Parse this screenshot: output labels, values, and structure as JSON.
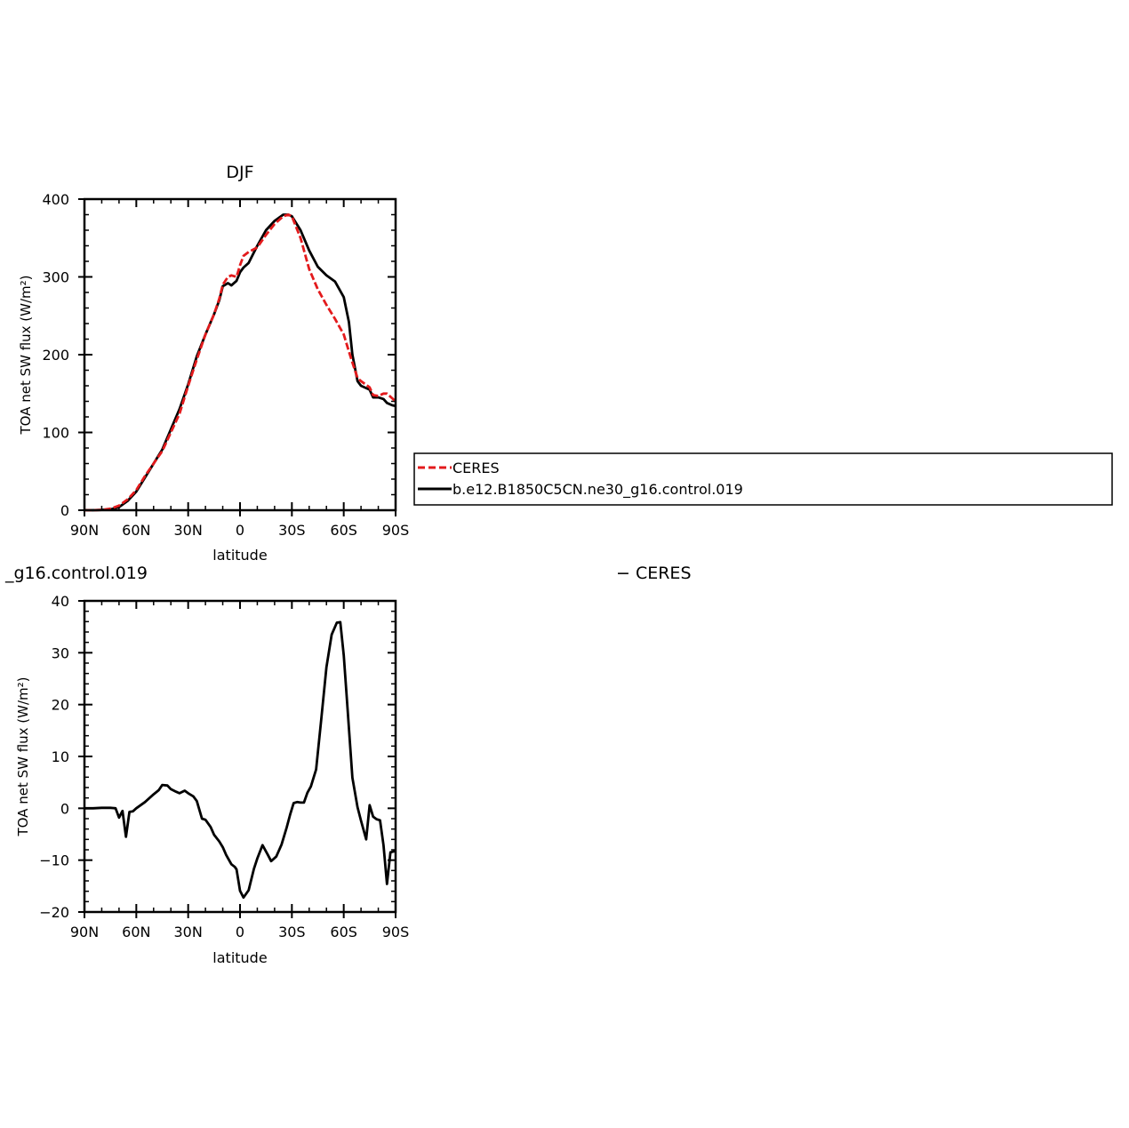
{
  "chart_data": [
    {
      "type": "line",
      "title": "DJF",
      "xlabel": "latitude",
      "ylabel": "TOA net SW flux (W/m²)",
      "xlim": [
        90,
        -90
      ],
      "ylim": [
        0,
        400
      ],
      "xticks": [
        90,
        60,
        30,
        0,
        -30,
        -60,
        -90
      ],
      "xtick_labels": [
        "90N",
        "60N",
        "30N",
        "0",
        "30S",
        "60S",
        "90S"
      ],
      "yticks": [
        0,
        100,
        200,
        300,
        400
      ],
      "ytick_labels": [
        "0",
        "100",
        "200",
        "300",
        "400"
      ],
      "legend": {
        "placement": "right",
        "entries": [
          {
            "name": "CERES",
            "color": "#e31a1c",
            "dash": "dashed"
          },
          {
            "name": "b.e12.B1850C5CN.ne30_g16.control.019",
            "color": "#000000",
            "dash": "solid"
          }
        ]
      },
      "series": [
        {
          "name": "CERES",
          "color": "#e31a1c",
          "x": [
            90,
            85,
            80,
            75,
            70,
            65,
            60,
            55,
            50,
            45,
            40,
            35,
            30,
            25,
            20,
            15,
            12,
            10,
            7,
            5,
            2,
            0,
            -2,
            -5,
            -10,
            -15,
            -20,
            -25,
            -28,
            -30,
            -35,
            -40,
            -45,
            -50,
            -55,
            -60,
            -63,
            -65,
            -68,
            -70,
            -75,
            -77,
            -80,
            -83,
            -85,
            -88,
            -90
          ],
          "y": [
            0,
            0,
            0.5,
            2,
            6,
            14,
            26,
            44,
            60,
            76,
            100,
            124,
            160,
            194,
            226,
            252,
            272,
            290,
            300,
            302,
            300,
            315,
            327,
            332,
            338,
            354,
            368,
            378,
            380,
            378,
            350,
            310,
            284,
            264,
            246,
            226,
            204,
            190,
            170,
            166,
            158,
            148,
            147,
            150,
            150,
            144,
            140
          ]
        },
        {
          "name": "b.e12.B1850C5CN.ne30_g16.control.019",
          "color": "#000000",
          "x": [
            90,
            85,
            80,
            75,
            70,
            65,
            60,
            55,
            50,
            45,
            40,
            35,
            30,
            25,
            20,
            15,
            12,
            10,
            7,
            5,
            2,
            0,
            -2,
            -5,
            -10,
            -15,
            -20,
            -25,
            -28,
            -30,
            -35,
            -40,
            -45,
            -50,
            -55,
            -60,
            -63,
            -65,
            -68,
            -70,
            -75,
            -77,
            -80,
            -83,
            -85,
            -88,
            -90
          ],
          "y": [
            0,
            0,
            0.5,
            1,
            4,
            12,
            24,
            42,
            60,
            78,
            104,
            130,
            162,
            198,
            226,
            252,
            270,
            288,
            292,
            289,
            295,
            306,
            312,
            318,
            340,
            360,
            372,
            380,
            380,
            378,
            360,
            334,
            313,
            302,
            294,
            274,
            242,
            200,
            166,
            160,
            155,
            145,
            145,
            143,
            138,
            135,
            134
          ]
        }
      ]
    },
    {
      "type": "line",
      "title_fragment": "_g16.control.019",
      "title_fragment_right": "− CERES",
      "xlabel": "latitude",
      "ylabel": "TOA net SW flux (W/m²)",
      "xlim": [
        90,
        -90
      ],
      "ylim": [
        -20,
        40
      ],
      "xticks": [
        90,
        60,
        30,
        0,
        -30,
        -60,
        -90
      ],
      "xtick_labels": [
        "90N",
        "60N",
        "30N",
        "0",
        "30S",
        "60S",
        "90S"
      ],
      "yticks": [
        -20,
        -10,
        0,
        10,
        20,
        30,
        40
      ],
      "ytick_labels": [
        "−20",
        "−10",
        "0",
        "10",
        "20",
        "30",
        "40"
      ],
      "series": [
        {
          "color": "#000000",
          "x": [
            90,
            85,
            80,
            75,
            72,
            70,
            68,
            66,
            64,
            62,
            60,
            55,
            50,
            47,
            45,
            42,
            40,
            37,
            35,
            32,
            30,
            27,
            25,
            22,
            20,
            17,
            15,
            12,
            10,
            8,
            5,
            3,
            2,
            0,
            -2,
            -5,
            -8,
            -10,
            -13,
            -16,
            -18,
            -21,
            -24,
            -27,
            -29,
            -31,
            -33,
            -35,
            -37,
            -39,
            -41,
            -44,
            -47,
            -50,
            -53,
            -56,
            -58,
            -60,
            -62,
            -65,
            -68,
            -70,
            -73,
            -75,
            -77,
            -79,
            -81,
            -83,
            -85,
            -87,
            -89,
            -90
          ],
          "y": [
            0,
            0,
            0.1,
            0.1,
            0,
            -1.8,
            -0.5,
            -5.5,
            -0.7,
            -0.6,
            0,
            1.2,
            2.7,
            3.5,
            4.5,
            4.4,
            3.7,
            3.2,
            2.9,
            3.4,
            2.9,
            2.3,
            1.4,
            -2,
            -2.2,
            -3.6,
            -5.1,
            -6.4,
            -7.5,
            -9,
            -10.8,
            -11.3,
            -11.8,
            -15.9,
            -17.2,
            -15.8,
            -11.7,
            -9.7,
            -7.1,
            -8.9,
            -10.2,
            -9.3,
            -7,
            -3.7,
            -1.2,
            1,
            1.2,
            1.1,
            1.1,
            3,
            4.2,
            7.5,
            17.2,
            27.2,
            33.5,
            35.8,
            35.9,
            29.5,
            20.1,
            5.9,
            0.2,
            -2.4,
            -6,
            0.6,
            -1.6,
            -2.1,
            -2.3,
            -7.1,
            -14.6,
            -8.5,
            -8.3,
            -8.3
          ]
        }
      ]
    }
  ]
}
